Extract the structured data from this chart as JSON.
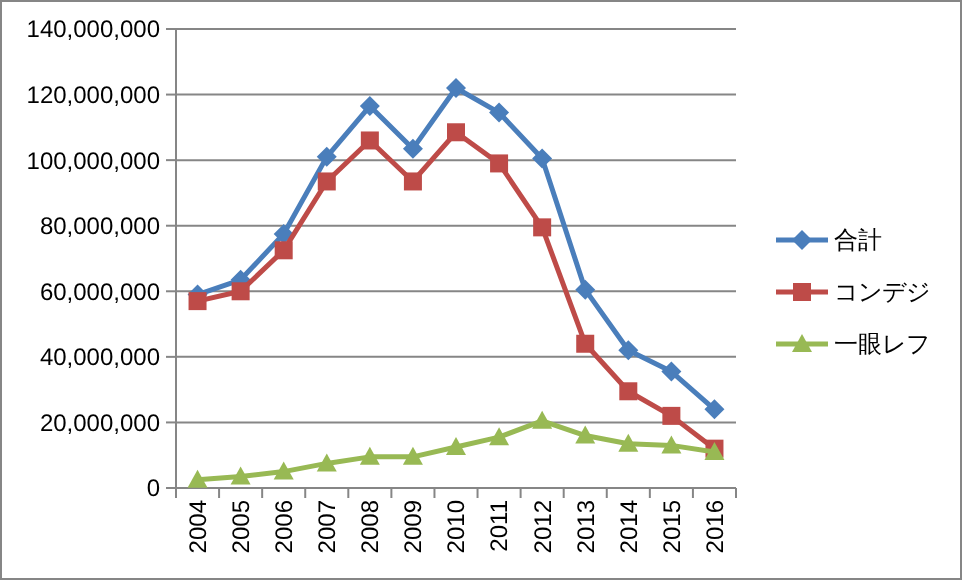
{
  "chart_data": {
    "type": "line",
    "categories": [
      "2004",
      "2005",
      "2006",
      "2007",
      "2008",
      "2009",
      "2010",
      "2011",
      "2012",
      "2013",
      "2014",
      "2015",
      "2016"
    ],
    "series": [
      {
        "name": "合計",
        "color": "#4a7ebb",
        "marker": "diamond",
        "values": [
          59000000,
          63500000,
          77500000,
          101000000,
          116500000,
          103500000,
          122000000,
          114500000,
          100500000,
          60500000,
          42000000,
          35500000,
          24000000
        ]
      },
      {
        "name": "コンデジ",
        "color": "#be4b48",
        "marker": "square",
        "values": [
          57000000,
          60000000,
          72500000,
          93500000,
          106000000,
          93500000,
          108500000,
          99000000,
          79500000,
          44000000,
          29500000,
          22000000,
          12000000
        ]
      },
      {
        "name": "一眼レフ",
        "color": "#98b954",
        "marker": "triangle",
        "values": [
          2500000,
          3500000,
          5000000,
          7500000,
          9500000,
          9500000,
          12500000,
          15500000,
          20500000,
          16000000,
          13500000,
          13000000,
          11000000
        ]
      }
    ],
    "ylim": [
      0,
      140000000
    ],
    "yticks": [
      {
        "value": 0,
        "label": "0"
      },
      {
        "value": 20000000,
        "label": "20,000,000"
      },
      {
        "value": 40000000,
        "label": "40,000,000"
      },
      {
        "value": 60000000,
        "label": "60,000,000"
      },
      {
        "value": 80000000,
        "label": "80,000,000"
      },
      {
        "value": 100000000,
        "label": "100,000,000"
      },
      {
        "value": 120000000,
        "label": "120,000,000"
      },
      {
        "value": 140000000,
        "label": "140,000,000"
      }
    ],
    "grid": "y",
    "legend": "right"
  }
}
